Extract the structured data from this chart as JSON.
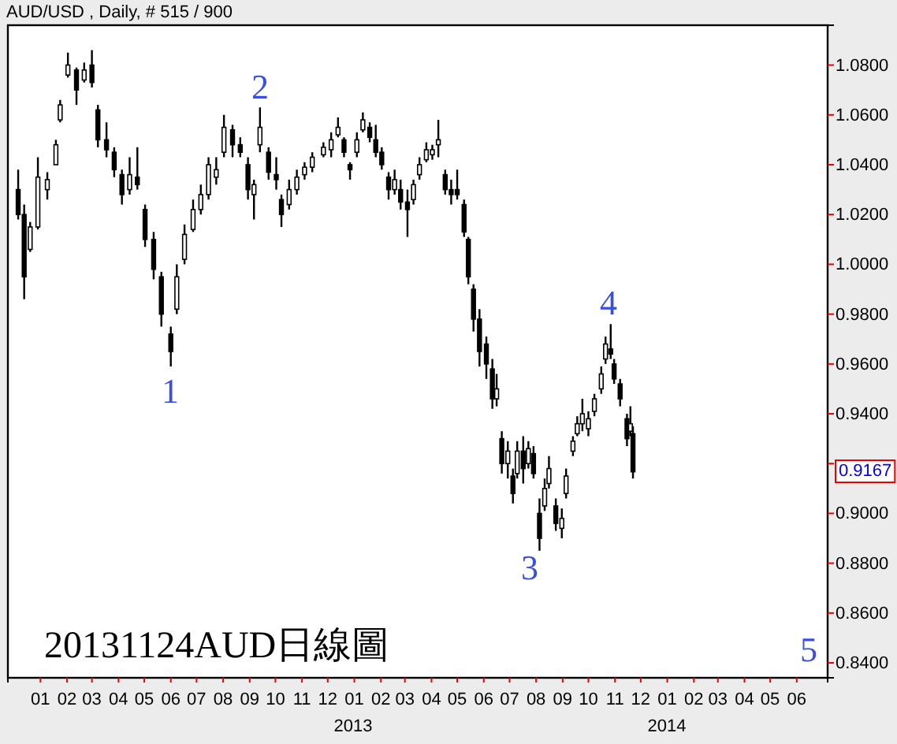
{
  "chart_data": {
    "type": "candlestick",
    "title": "AUD/USD , Daily, # 515 / 900",
    "x": [
      "2011-12-06",
      "2011-12-13",
      "2011-12-20",
      "2011-12-29",
      "2012-01-09",
      "2012-01-19",
      "2012-01-24",
      "2012-02-02",
      "2012-02-12",
      "2012-02-21",
      "2012-03-01",
      "2012-03-08",
      "2012-03-18",
      "2012-03-27",
      "2012-04-05",
      "2012-04-14",
      "2012-04-23",
      "2012-05-02",
      "2012-05-12",
      "2012-05-21",
      "2012-06-01",
      "2012-06-08",
      "2012-06-17",
      "2012-06-27",
      "2012-07-06",
      "2012-07-15",
      "2012-07-24",
      "2012-08-02",
      "2012-08-12",
      "2012-08-21",
      "2012-08-30",
      "2012-09-06",
      "2012-09-13",
      "2012-09-23",
      "2012-10-02",
      "2012-10-08",
      "2012-10-17",
      "2012-10-26",
      "2012-11-04",
      "2012-11-13",
      "2012-11-26",
      "2012-12-05",
      "2012-12-13",
      "2012-12-20",
      "2012-12-27",
      "2013-01-04",
      "2013-01-11",
      "2013-01-19",
      "2013-01-26",
      "2013-02-02",
      "2013-02-10",
      "2013-02-17",
      "2013-02-24",
      "2013-03-04",
      "2013-03-11",
      "2013-03-18",
      "2013-03-26",
      "2013-04-02",
      "2013-04-09",
      "2013-04-17",
      "2013-04-24",
      "2013-05-01",
      "2013-05-09",
      "2013-05-14",
      "2013-05-20",
      "2013-05-27",
      "2013-06-04",
      "2013-06-11",
      "2013-06-16",
      "2013-06-22",
      "2013-06-29",
      "2013-07-05",
      "2013-07-10",
      "2013-07-17",
      "2013-07-23",
      "2013-07-29",
      "2013-08-05",
      "2013-08-11",
      "2013-08-16",
      "2013-08-24",
      "2013-08-31",
      "2013-09-05",
      "2013-09-13",
      "2013-09-18",
      "2013-09-24",
      "2013-10-01",
      "2013-10-08",
      "2013-10-16",
      "2013-10-21",
      "2013-10-27",
      "2013-10-31",
      "2013-11-07",
      "2013-11-15",
      "2013-11-19",
      "2013-11-22"
    ],
    "ohlc": [
      [
        1.03,
        1.038,
        1.018,
        1.02
      ],
      [
        1.02,
        1.024,
        0.986,
        0.995
      ],
      [
        1.006,
        1.017,
        1.005,
        1.015
      ],
      [
        1.015,
        1.043,
        1.014,
        1.035
      ],
      [
        1.03,
        1.037,
        1.026,
        1.034
      ],
      [
        1.04,
        1.05,
        1.04,
        1.048
      ],
      [
        1.058,
        1.066,
        1.057,
        1.064
      ],
      [
        1.076,
        1.085,
        1.075,
        1.08
      ],
      [
        1.078,
        1.079,
        1.064,
        1.07
      ],
      [
        1.074,
        1.081,
        1.073,
        1.078
      ],
      [
        1.08,
        1.086,
        1.071,
        1.073
      ],
      [
        1.062,
        1.064,
        1.047,
        1.05
      ],
      [
        1.05,
        1.057,
        1.043,
        1.046
      ],
      [
        1.045,
        1.047,
        1.035,
        1.038
      ],
      [
        1.036,
        1.038,
        1.024,
        1.028
      ],
      [
        1.03,
        1.043,
        1.028,
        1.036
      ],
      [
        1.035,
        1.047,
        1.03,
        1.032
      ],
      [
        1.022,
        1.024,
        1.007,
        1.01
      ],
      [
        1.01,
        1.013,
        0.994,
        0.998
      ],
      [
        0.995,
        0.997,
        0.975,
        0.98
      ],
      [
        0.972,
        0.975,
        0.959,
        0.965
      ],
      [
        0.982,
        1.0,
        0.98,
        0.995
      ],
      [
        1.002,
        1.016,
        1.0,
        1.012
      ],
      [
        1.014,
        1.026,
        1.013,
        1.022
      ],
      [
        1.022,
        1.032,
        1.02,
        1.028
      ],
      [
        1.028,
        1.043,
        1.026,
        1.04
      ],
      [
        1.035,
        1.043,
        1.032,
        1.038
      ],
      [
        1.045,
        1.06,
        1.043,
        1.055
      ],
      [
        1.054,
        1.056,
        1.043,
        1.048
      ],
      [
        1.048,
        1.051,
        1.043,
        1.045
      ],
      [
        1.04,
        1.043,
        1.026,
        1.03
      ],
      [
        1.028,
        1.034,
        1.018,
        1.032
      ],
      [
        1.048,
        1.063,
        1.045,
        1.055
      ],
      [
        1.045,
        1.047,
        1.034,
        1.037
      ],
      [
        1.036,
        1.043,
        1.03,
        1.034
      ],
      [
        1.026,
        1.028,
        1.015,
        1.02
      ],
      [
        1.024,
        1.034,
        1.022,
        1.03
      ],
      [
        1.03,
        1.038,
        1.028,
        1.035
      ],
      [
        1.036,
        1.041,
        1.034,
        1.039
      ],
      [
        1.039,
        1.045,
        1.037,
        1.043
      ],
      [
        1.044,
        1.049,
        1.043,
        1.047
      ],
      [
        1.046,
        1.053,
        1.043,
        1.05
      ],
      [
        1.052,
        1.059,
        1.051,
        1.055
      ],
      [
        1.05,
        1.051,
        1.043,
        1.045
      ],
      [
        1.04,
        1.041,
        1.034,
        1.038
      ],
      [
        1.045,
        1.053,
        1.043,
        1.05
      ],
      [
        1.054,
        1.061,
        1.053,
        1.058
      ],
      [
        1.055,
        1.057,
        1.049,
        1.051
      ],
      [
        1.05,
        1.056,
        1.043,
        1.045
      ],
      [
        1.045,
        1.047,
        1.038,
        1.04
      ],
      [
        1.035,
        1.037,
        1.026,
        1.03
      ],
      [
        1.03,
        1.038,
        1.028,
        1.034
      ],
      [
        1.03,
        1.034,
        1.022,
        1.025
      ],
      [
        1.025,
        1.03,
        1.011,
        1.022
      ],
      [
        1.026,
        1.034,
        1.024,
        1.032
      ],
      [
        1.036,
        1.043,
        1.034,
        1.04
      ],
      [
        1.042,
        1.049,
        1.041,
        1.046
      ],
      [
        1.044,
        1.048,
        1.042,
        1.046
      ],
      [
        1.048,
        1.058,
        1.043,
        1.05
      ],
      [
        1.036,
        1.038,
        1.028,
        1.03
      ],
      [
        1.03,
        1.034,
        1.024,
        1.028
      ],
      [
        1.03,
        1.038,
        1.026,
        1.028
      ],
      [
        1.024,
        1.026,
        1.011,
        1.013
      ],
      [
        1.01,
        1.011,
        0.992,
        0.995
      ],
      [
        0.99,
        0.992,
        0.973,
        0.978
      ],
      [
        0.978,
        0.982,
        0.959,
        0.965
      ],
      [
        0.968,
        0.971,
        0.954,
        0.96
      ],
      [
        0.958,
        0.962,
        0.942,
        0.946
      ],
      [
        0.946,
        0.956,
        0.943,
        0.95
      ],
      [
        0.93,
        0.933,
        0.916,
        0.92
      ],
      [
        0.92,
        0.929,
        0.914,
        0.925
      ],
      [
        0.915,
        0.918,
        0.904,
        0.908
      ],
      [
        0.916,
        0.929,
        0.914,
        0.925
      ],
      [
        0.925,
        0.931,
        0.912,
        0.918
      ],
      [
        0.92,
        0.929,
        0.918,
        0.926
      ],
      [
        0.924,
        0.927,
        0.914,
        0.916
      ],
      [
        0.9,
        0.906,
        0.885,
        0.89
      ],
      [
        0.903,
        0.914,
        0.901,
        0.91
      ],
      [
        0.912,
        0.923,
        0.91,
        0.918
      ],
      [
        0.903,
        0.906,
        0.893,
        0.896
      ],
      [
        0.894,
        0.902,
        0.89,
        0.898
      ],
      [
        0.908,
        0.918,
        0.906,
        0.915
      ],
      [
        0.925,
        0.931,
        0.923,
        0.929
      ],
      [
        0.932,
        0.939,
        0.931,
        0.936
      ],
      [
        0.936,
        0.946,
        0.933,
        0.94
      ],
      [
        0.934,
        0.941,
        0.931,
        0.938
      ],
      [
        0.941,
        0.948,
        0.939,
        0.946
      ],
      [
        0.95,
        0.959,
        0.948,
        0.956
      ],
      [
        0.962,
        0.971,
        0.96,
        0.968
      ],
      [
        0.966,
        0.976,
        0.962,
        0.964
      ],
      [
        0.96,
        0.962,
        0.952,
        0.954
      ],
      [
        0.952,
        0.954,
        0.943,
        0.946
      ],
      [
        0.938,
        0.94,
        0.927,
        0.93
      ],
      [
        0.933,
        0.943,
        0.931,
        0.936
      ],
      [
        0.932,
        0.935,
        0.914,
        0.9167
      ]
    ],
    "xlim": [
      "2011-11-24",
      "2014-07-07"
    ],
    "xticks": [
      {
        "value": "2012-01",
        "label": "01"
      },
      {
        "value": "2012-02",
        "label": "02"
      },
      {
        "value": "2012-03",
        "label": "03"
      },
      {
        "value": "2012-04",
        "label": "04"
      },
      {
        "value": "2012-05",
        "label": "05"
      },
      {
        "value": "2012-06",
        "label": "06"
      },
      {
        "value": "2012-07",
        "label": "07"
      },
      {
        "value": "2012-08",
        "label": "08"
      },
      {
        "value": "2012-09",
        "label": "09"
      },
      {
        "value": "2012-10",
        "label": "10"
      },
      {
        "value": "2012-11",
        "label": "11"
      },
      {
        "value": "2012-12",
        "label": "12"
      },
      {
        "value": "2013-01",
        "label": "01"
      },
      {
        "value": "2013-02",
        "label": "02"
      },
      {
        "value": "2013-03",
        "label": "03"
      },
      {
        "value": "2013-04",
        "label": "04"
      },
      {
        "value": "2013-05",
        "label": "05"
      },
      {
        "value": "2013-06",
        "label": "06"
      },
      {
        "value": "2013-07",
        "label": "07"
      },
      {
        "value": "2013-08",
        "label": "08"
      },
      {
        "value": "2013-09",
        "label": "09"
      },
      {
        "value": "2013-10",
        "label": "10"
      },
      {
        "value": "2013-11",
        "label": "11"
      },
      {
        "value": "2013-12",
        "label": "12"
      },
      {
        "value": "2014-01",
        "label": "01"
      },
      {
        "value": "2014-02",
        "label": "02"
      },
      {
        "value": "2014-03",
        "label": "03"
      },
      {
        "value": "2014-04",
        "label": "04"
      },
      {
        "value": "2014-05",
        "label": "05"
      },
      {
        "value": "2014-06",
        "label": "06"
      }
    ],
    "ylim": [
      0.834,
      1.096
    ],
    "yticks": [
      {
        "value": 0.84,
        "label": "0.8400"
      },
      {
        "value": 0.86,
        "label": "0.8600"
      },
      {
        "value": 0.88,
        "label": "0.8800"
      },
      {
        "value": 0.9,
        "label": "0.9000"
      },
      {
        "value": 0.92,
        "label": null
      },
      {
        "value": 0.94,
        "label": "0.9400"
      },
      {
        "value": 0.96,
        "label": "0.9600"
      },
      {
        "value": 0.98,
        "label": "0.9800"
      },
      {
        "value": 1.0,
        "label": "1.0000"
      },
      {
        "value": 1.02,
        "label": "1.0200"
      },
      {
        "value": 1.04,
        "label": "1.0400"
      },
      {
        "value": 1.06,
        "label": "1.0600"
      },
      {
        "value": 1.08,
        "label": "1.0800"
      }
    ],
    "annotations": [
      "1",
      "2",
      "3",
      "4",
      "5",
      "0.9167",
      "2013",
      "2014",
      "20131124AUD日線圖"
    ]
  }
}
